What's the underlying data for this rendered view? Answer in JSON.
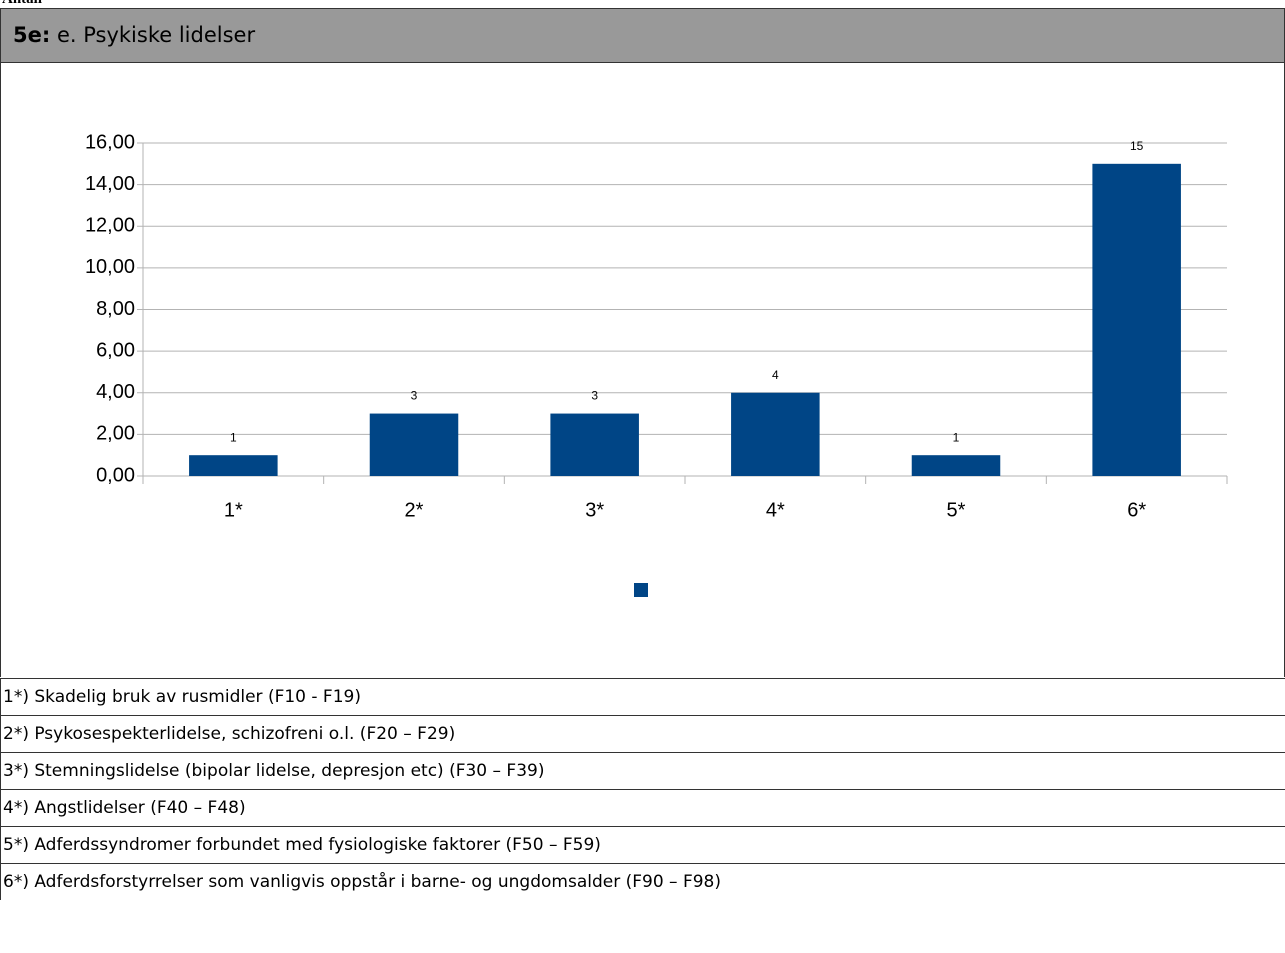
{
  "top_label": "Antall",
  "header": {
    "prefix": "5e:",
    "title": "e. Psykiske lidelser"
  },
  "chart_data": {
    "type": "bar",
    "categories": [
      "1*",
      "2*",
      "3*",
      "4*",
      "5*",
      "6*"
    ],
    "values": [
      1,
      3,
      3,
      4,
      1,
      15
    ],
    "color": "#004586",
    "ylim": [
      0,
      16
    ],
    "yticks": [
      {
        "value": 0,
        "label": "0,00"
      },
      {
        "value": 2,
        "label": "2,00"
      },
      {
        "value": 4,
        "label": "4,00"
      },
      {
        "value": 6,
        "label": "6,00"
      },
      {
        "value": 8,
        "label": "8,00"
      },
      {
        "value": 10,
        "label": "10,00"
      },
      {
        "value": 12,
        "label": "12,00"
      },
      {
        "value": 14,
        "label": "14,00"
      },
      {
        "value": 16,
        "label": "16,00"
      }
    ],
    "grid": true,
    "data_labels": true
  },
  "footnotes": [
    "1*) Skadelig bruk av rusmidler (F10 - F19)",
    "2*) Psykosespekterlidelse, schizofreni o.l. (F20 – F29)",
    "3*) Stemningslidelse (bipolar lidelse, depresjon etc) (F30 – F39)",
    "4*) Angstlidelser (F40 – F48)",
    "5*) Adferdssyndromer forbundet med fysiologiske faktorer (F50 – F59)",
    "6*) Adferdsforstyrrelser som vanligvis oppstår i barne- og ungdomsalder (F90 – F98)"
  ]
}
